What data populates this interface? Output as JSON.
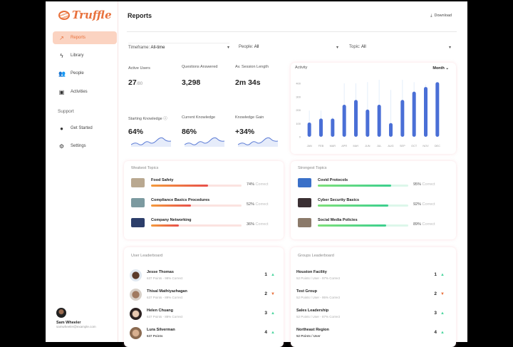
{
  "brand": {
    "name": "Truffle",
    "accent": "#e8713c"
  },
  "sidebar": {
    "items": [
      {
        "label": "Reports",
        "icon": "trend-icon",
        "active": true
      },
      {
        "label": "Library",
        "icon": "bolt-icon"
      },
      {
        "label": "People",
        "icon": "people-icon"
      },
      {
        "label": "Activities",
        "icon": "activities-icon"
      }
    ],
    "support_label": "Support",
    "support_items": [
      {
        "label": "Get Started",
        "icon": "lightbulb-icon"
      },
      {
        "label": "Settings",
        "icon": "gear-icon"
      }
    ],
    "user": {
      "name": "Sam Wheeler",
      "email": "samwheeler@example.com"
    }
  },
  "header": {
    "title": "Reports",
    "download": "Download"
  },
  "filters": [
    {
      "label": "Timeframe:",
      "value": "All-time"
    },
    {
      "label": "People:",
      "value": "All"
    },
    {
      "label": "Topic:",
      "value": "All"
    }
  ],
  "stats": [
    {
      "label": "Active Users",
      "value": "27",
      "suffix": "/80"
    },
    {
      "label": "Questions Answered",
      "value": "3,298"
    },
    {
      "label": "Av. Session Length",
      "value": "2m 34s"
    },
    {
      "label": "Starting Knowledge",
      "value": "64%",
      "info": "ⓘ"
    },
    {
      "label": "Current Knowledge",
      "value": "86%"
    },
    {
      "label": "Knowledge Gain",
      "value": "+34%"
    }
  ],
  "activity": {
    "title": "Activity",
    "period": "Month",
    "chart_data": {
      "type": "bar",
      "categories": [
        "JAN",
        "FEB",
        "MAR",
        "APR",
        "MAY",
        "JUN",
        "JUL",
        "AUG",
        "SEP",
        "OCT",
        "NOV",
        "DEC"
      ],
      "values": [
        107,
        137,
        137,
        240,
        276,
        204,
        240,
        103,
        276,
        338,
        373,
        409
      ],
      "range_max": [
        196,
        196,
        151,
        400,
        400,
        409,
        427,
        351,
        427,
        409,
        391,
        409
      ],
      "yticks": [
        0,
        100,
        200,
        300,
        400
      ],
      "ylim": [
        0,
        420
      ],
      "color": "#4a6fd6"
    }
  },
  "weakest": {
    "title": "Weakest Topics",
    "items": [
      {
        "name": "Food Safety",
        "pct": 74,
        "pct_label": "74%",
        "suffix": "Correct"
      },
      {
        "name": "Compliance Basics Procedures",
        "pct": 52,
        "pct_label": "52%",
        "suffix": "Correct"
      },
      {
        "name": "Company Networking",
        "pct": 36,
        "pct_label": "36%",
        "suffix": "Correct"
      }
    ]
  },
  "strongest": {
    "title": "Strongest Topics",
    "items": [
      {
        "name": "Covid Protocols",
        "pct": 95,
        "pct_label": "95%",
        "suffix": "Correct"
      },
      {
        "name": "Cyber Security Basics",
        "pct": 92,
        "pct_label": "92%",
        "suffix": "Correct"
      },
      {
        "name": "Social Media Policies",
        "pct": 89,
        "pct_label": "89%",
        "suffix": "Correct"
      }
    ]
  },
  "user_leaderboard": {
    "title": "User Leaderboard",
    "items": [
      {
        "name": "Jesse Thomas",
        "sub": "637 Points - 98% Correct",
        "rank": "1",
        "trend": "up"
      },
      {
        "name": "Thisal Mathiyazhagan",
        "sub": "637 Points - 89% Correct",
        "rank": "2",
        "trend": "down"
      },
      {
        "name": "Helen Chuang",
        "sub": "637 Points - 88% Correct",
        "rank": "3",
        "trend": "up"
      },
      {
        "name": "Lura Silverman",
        "sub": "637 Points",
        "rank": "4",
        "trend": "up"
      }
    ]
  },
  "group_leaderboard": {
    "title": "Groups Leaderboard",
    "items": [
      {
        "name": "Houston Facility",
        "sub": "52 Points / User - 97% Correct",
        "rank": "1",
        "trend": "up"
      },
      {
        "name": "Test Group",
        "sub": "52 Points / User - 95% Correct",
        "rank": "2",
        "trend": "down"
      },
      {
        "name": "Sales Leadership",
        "sub": "52 Points / User - 87% Correct",
        "rank": "3",
        "trend": "up"
      },
      {
        "name": "Northeast Region",
        "sub": "52 Points / User",
        "rank": "4",
        "trend": "up"
      }
    ]
  }
}
